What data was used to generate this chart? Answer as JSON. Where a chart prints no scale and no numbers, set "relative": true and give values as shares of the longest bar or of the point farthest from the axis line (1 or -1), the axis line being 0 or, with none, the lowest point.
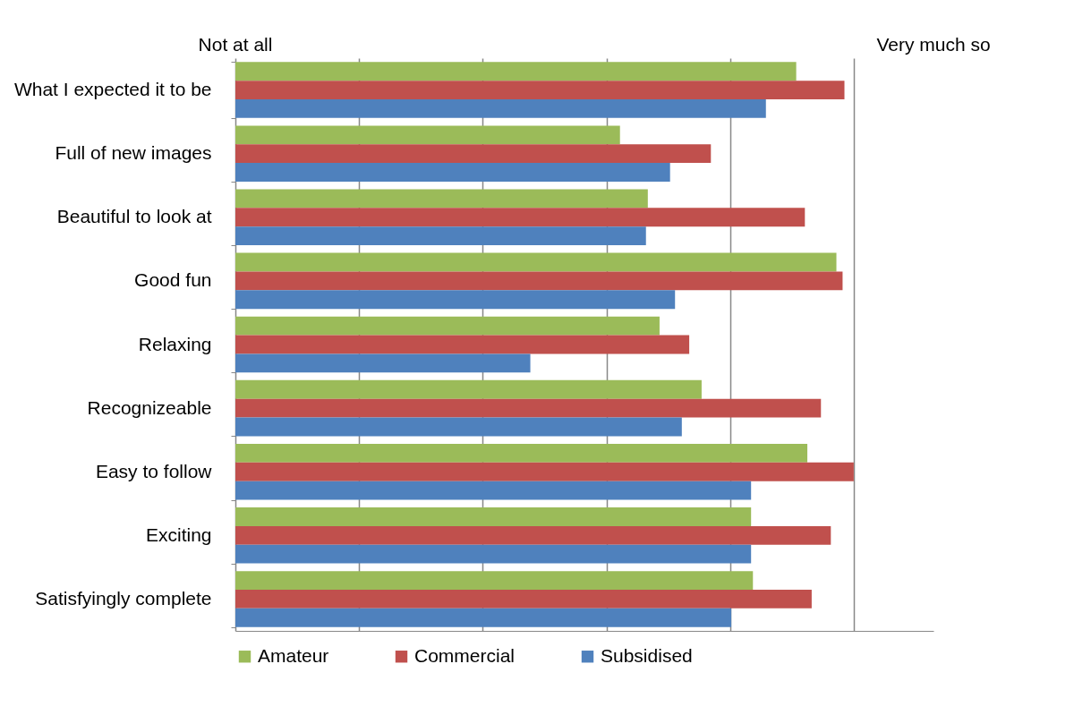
{
  "chart_data": {
    "type": "bar",
    "orientation": "horizontal",
    "relative": true,
    "grid": "x",
    "legend": "bottom",
    "categories": [
      "What I expected it to be",
      "Full of new images",
      "Beautiful to look at",
      "Good fun",
      "Relaxing",
      "Recognizeable",
      "Easy to follow ",
      "Exciting",
      "Satisfyingly complete"
    ],
    "series": [
      {
        "name": "Amateur",
        "color": "#9bbb59",
        "values": [
          0.907,
          0.622,
          0.667,
          0.972,
          0.686,
          0.754,
          0.925,
          0.834,
          0.837
        ]
      },
      {
        "name": "Commercial",
        "color": "#c0504d",
        "values": [
          0.985,
          0.769,
          0.921,
          0.982,
          0.734,
          0.947,
          1.0,
          0.963,
          0.932
        ]
      },
      {
        "name": "Subsidised",
        "color": "#4f81bd",
        "values": [
          0.858,
          0.703,
          0.664,
          0.711,
          0.477,
          0.722,
          0.834,
          0.834,
          0.802
        ]
      }
    ],
    "annotations": [
      "Not at all",
      "Very much so"
    ]
  }
}
